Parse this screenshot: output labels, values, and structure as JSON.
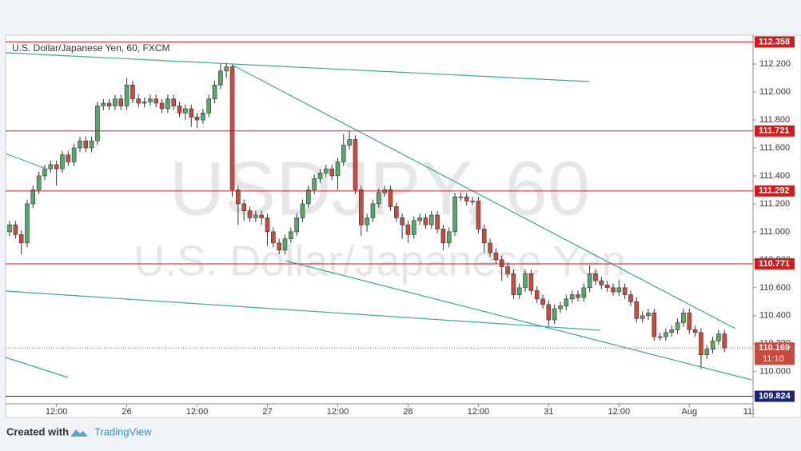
{
  "chart_data": {
    "type": "candlestick",
    "title": "U.S. Dollar/Japanese Yen, 60, FXCM",
    "watermark": [
      "USDJPY, 60",
      "U.S. Dollar/Japanese Yen"
    ],
    "footer": {
      "created": "Created with",
      "brand": "TradingView"
    },
    "up_color": "#53a86a",
    "down_color": "#c94a3f",
    "categories": [
      null,
      null,
      null,
      null,
      null,
      null,
      null,
      null,
      "12:00",
      null,
      null,
      null,
      null,
      null,
      null,
      null,
      null,
      null,
      null,
      null,
      "26",
      null,
      null,
      null,
      null,
      null,
      null,
      null,
      null,
      null,
      null,
      null,
      "12:00",
      null,
      null,
      null,
      null,
      null,
      null,
      null,
      null,
      null,
      null,
      null,
      "27",
      null,
      null,
      null,
      null,
      null,
      null,
      null,
      null,
      null,
      null,
      null,
      "12:00",
      null,
      null,
      null,
      null,
      null,
      null,
      null,
      null,
      null,
      null,
      null,
      "28",
      null,
      null,
      null,
      null,
      null,
      null,
      null,
      null,
      null,
      null,
      null,
      "12:00",
      null,
      null,
      null,
      null,
      null,
      null,
      null,
      null,
      null,
      null,
      null,
      "31",
      null,
      null,
      null,
      null,
      null,
      null,
      null,
      null,
      null,
      null,
      null,
      "12:00",
      null,
      null,
      null,
      null,
      null,
      null,
      null,
      null,
      null,
      null,
      null,
      "Aug",
      null,
      null,
      null,
      null,
      null,
      null
    ],
    "x_cut_label": "11:",
    "open": [
      111.0,
      111.05,
      110.98,
      110.92,
      111.2,
      111.3,
      111.4,
      111.45,
      111.48,
      111.45,
      111.55,
      111.5,
      111.6,
      111.65,
      111.6,
      111.65,
      111.9,
      111.92,
      111.9,
      111.95,
      111.9,
      112.05,
      111.95,
      111.92,
      111.93,
      111.95,
      111.92,
      111.88,
      111.95,
      111.9,
      111.85,
      111.88,
      111.82,
      111.8,
      111.85,
      111.95,
      112.05,
      112.15,
      112.18,
      111.3,
      111.2,
      111.15,
      111.1,
      111.12,
      111.1,
      111.0,
      110.92,
      110.87,
      110.95,
      111.0,
      111.1,
      111.2,
      111.3,
      111.38,
      111.42,
      111.45,
      111.4,
      111.5,
      111.62,
      111.66,
      111.3,
      111.05,
      111.1,
      111.2,
      111.28,
      111.3,
      111.18,
      111.1,
      111.05,
      110.98,
      111.08,
      111.1,
      111.05,
      111.12,
      111.02,
      110.92,
      111.0,
      111.25,
      111.25,
      111.22,
      111.22,
      111.02,
      110.92,
      110.85,
      110.8,
      110.75,
      110.7,
      110.55,
      110.6,
      110.7,
      110.58,
      110.52,
      110.48,
      110.37,
      110.45,
      110.47,
      110.52,
      110.55,
      110.53,
      110.6,
      110.7,
      110.65,
      110.62,
      110.6,
      110.57,
      110.6,
      110.55,
      110.5,
      110.38,
      110.4,
      110.42,
      110.25,
      110.25,
      110.28,
      110.3,
      110.35,
      110.42,
      110.3,
      110.28,
      110.12,
      110.16,
      110.22,
      110.27
    ],
    "high": [
      111.08,
      111.08,
      111.01,
      111.23,
      111.33,
      111.43,
      111.48,
      111.51,
      111.51,
      111.58,
      111.58,
      111.63,
      111.68,
      111.68,
      111.68,
      111.93,
      111.95,
      111.95,
      111.98,
      111.98,
      112.1,
      112.08,
      111.98,
      111.96,
      111.98,
      111.98,
      111.95,
      111.98,
      111.98,
      111.93,
      111.91,
      111.91,
      111.85,
      111.88,
      111.98,
      112.08,
      112.2,
      112.21,
      112.2,
      111.33,
      111.23,
      111.18,
      111.15,
      111.15,
      111.13,
      111.03,
      110.95,
      110.98,
      111.03,
      111.13,
      111.23,
      111.33,
      111.41,
      111.45,
      111.48,
      111.48,
      111.53,
      111.7,
      111.72,
      111.69,
      111.33,
      111.13,
      111.23,
      111.31,
      111.33,
      111.33,
      111.21,
      111.13,
      111.08,
      111.11,
      111.13,
      111.13,
      111.15,
      111.15,
      111.05,
      111.03,
      111.28,
      111.28,
      111.28,
      111.25,
      111.25,
      111.05,
      110.95,
      110.88,
      110.83,
      110.78,
      110.73,
      110.63,
      110.73,
      110.73,
      110.61,
      110.55,
      110.51,
      110.48,
      110.5,
      110.55,
      110.58,
      110.58,
      110.63,
      110.76,
      110.73,
      110.68,
      110.65,
      110.63,
      110.66,
      110.63,
      110.58,
      110.53,
      110.43,
      110.45,
      110.45,
      110.28,
      110.31,
      110.33,
      110.38,
      110.45,
      110.45,
      110.33,
      110.31,
      110.19,
      110.25,
      110.3,
      110.3
    ],
    "low": [
      110.97,
      110.95,
      110.84,
      110.89,
      111.17,
      111.27,
      111.37,
      111.42,
      111.33,
      111.42,
      111.47,
      111.47,
      111.57,
      111.57,
      111.57,
      111.62,
      111.87,
      111.87,
      111.87,
      111.87,
      111.87,
      111.92,
      111.89,
      111.89,
      111.9,
      111.89,
      111.85,
      111.85,
      111.87,
      111.82,
      111.8,
      111.75,
      111.74,
      111.77,
      111.82,
      111.92,
      112.02,
      112.1,
      111.25,
      111.05,
      111.08,
      111.07,
      111.07,
      111.05,
      110.9,
      110.89,
      110.84,
      110.84,
      110.92,
      110.97,
      111.07,
      111.17,
      111.27,
      111.35,
      111.39,
      111.37,
      111.3,
      111.47,
      111.59,
      111.27,
      110.97,
      111.0,
      111.07,
      111.17,
      111.25,
      111.15,
      111.07,
      110.95,
      110.92,
      110.95,
      111.05,
      111.02,
      111.02,
      110.99,
      110.87,
      110.89,
      110.97,
      111.22,
      111.19,
      111.19,
      110.99,
      110.85,
      110.82,
      110.77,
      110.65,
      110.67,
      110.52,
      110.52,
      110.57,
      110.55,
      110.49,
      110.45,
      110.32,
      110.34,
      110.42,
      110.44,
      110.49,
      110.5,
      110.5,
      110.57,
      110.62,
      110.59,
      110.57,
      110.54,
      110.54,
      110.52,
      110.47,
      110.35,
      110.35,
      110.37,
      110.22,
      110.22,
      110.22,
      110.25,
      110.27,
      110.32,
      110.27,
      110.25,
      110.02,
      110.09,
      110.13,
      110.19,
      110.14
    ],
    "close": [
      111.05,
      110.98,
      110.92,
      111.2,
      111.3,
      111.4,
      111.45,
      111.48,
      111.45,
      111.55,
      111.5,
      111.6,
      111.65,
      111.6,
      111.65,
      111.9,
      111.92,
      111.9,
      111.95,
      111.9,
      112.05,
      111.95,
      111.92,
      111.93,
      111.95,
      111.92,
      111.88,
      111.95,
      111.9,
      111.85,
      111.88,
      111.82,
      111.8,
      111.85,
      111.95,
      112.05,
      112.15,
      112.18,
      111.3,
      111.2,
      111.15,
      111.1,
      111.12,
      111.1,
      111.0,
      110.92,
      110.87,
      110.95,
      111.0,
      111.1,
      111.2,
      111.3,
      111.38,
      111.42,
      111.45,
      111.4,
      111.5,
      111.62,
      111.66,
      111.3,
      111.05,
      111.1,
      111.2,
      111.28,
      111.3,
      111.18,
      111.1,
      111.05,
      110.98,
      111.08,
      111.1,
      111.05,
      111.12,
      111.02,
      110.92,
      111.0,
      111.25,
      111.25,
      111.22,
      111.22,
      111.02,
      110.92,
      110.85,
      110.8,
      110.75,
      110.7,
      110.55,
      110.6,
      110.7,
      110.58,
      110.52,
      110.48,
      110.37,
      110.45,
      110.47,
      110.52,
      110.55,
      110.53,
      110.6,
      110.7,
      110.65,
      110.62,
      110.6,
      110.57,
      110.6,
      110.55,
      110.5,
      110.38,
      110.4,
      110.42,
      110.25,
      110.25,
      110.28,
      110.3,
      110.35,
      110.42,
      110.3,
      110.28,
      110.12,
      110.16,
      110.22,
      110.27,
      110.17
    ],
    "ylim": [
      109.77,
      112.406
    ],
    "yticks": [
      {
        "value": 110.0,
        "label": "110.000"
      },
      {
        "value": 110.2,
        "label": "110.200"
      },
      {
        "value": 110.4,
        "label": "110.400"
      },
      {
        "value": 110.6,
        "label": "110.600"
      },
      {
        "value": 110.8,
        "label": "110.800"
      },
      {
        "value": 111.0,
        "label": "111.000"
      },
      {
        "value": 111.2,
        "label": "111.200"
      },
      {
        "value": 111.4,
        "label": "111.400"
      },
      {
        "value": 111.6,
        "label": "111.600"
      },
      {
        "value": 111.8,
        "label": "111.800"
      },
      {
        "value": 112.0,
        "label": "112.000"
      },
      {
        "value": 112.2,
        "label": "112.200"
      }
    ],
    "levels": [
      {
        "value": 112.358,
        "color": "#d01c1c"
      },
      {
        "value": 111.721,
        "color": "#d01c1c"
      },
      {
        "value": 111.292,
        "color": "#d01c1c"
      },
      {
        "value": 110.771,
        "color": "#d01c1c"
      },
      {
        "value": 109.824,
        "color": "#1a237e"
      }
    ],
    "last_price": {
      "value": 110.169,
      "countdown": "11:10",
      "color": "#c94a3f"
    }
  }
}
